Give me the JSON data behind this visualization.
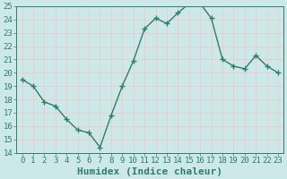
{
  "x": [
    0,
    1,
    2,
    3,
    4,
    5,
    6,
    7,
    8,
    9,
    10,
    11,
    12,
    13,
    14,
    15,
    16,
    17,
    18,
    19,
    20,
    21,
    22,
    23
  ],
  "y": [
    19.5,
    19.0,
    17.8,
    17.5,
    16.5,
    15.7,
    15.5,
    14.4,
    16.8,
    19.0,
    20.9,
    23.3,
    24.1,
    23.7,
    24.5,
    25.2,
    25.2,
    24.1,
    21.0,
    20.5,
    20.3,
    21.3,
    20.5,
    20.0
  ],
  "line_color": "#2e7d6e",
  "marker": "+",
  "marker_size": 4,
  "marker_linewidth": 1.0,
  "ylim": [
    14,
    25
  ],
  "xlim": [
    -0.5,
    23.5
  ],
  "yticks": [
    14,
    15,
    16,
    17,
    18,
    19,
    20,
    21,
    22,
    23,
    24,
    25
  ],
  "xticks": [
    0,
    1,
    2,
    3,
    4,
    5,
    6,
    7,
    8,
    9,
    10,
    11,
    12,
    13,
    14,
    15,
    16,
    17,
    18,
    19,
    20,
    21,
    22,
    23
  ],
  "bg_color": "#cce8e8",
  "grid_color": "#f0c8c8",
  "tick_labelsize": 6.5,
  "xlabel": "Humidex (Indice chaleur)",
  "xlabel_fontsize": 8,
  "line_width": 1.0,
  "spine_color": "#2e7d6e",
  "tick_color": "#2e7d6e",
  "label_color": "#2e7d6e"
}
